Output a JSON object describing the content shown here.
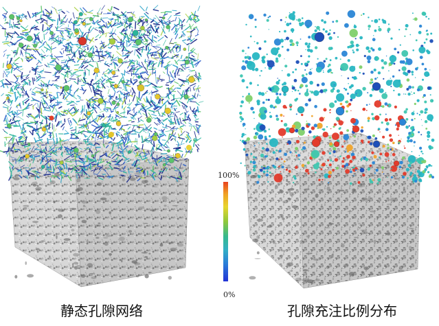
{
  "captions": {
    "left": "静态孔隙网络",
    "right": "孔隙充注比例分布"
  },
  "colorbar": {
    "max_label": "100%",
    "min_label": "0%",
    "colors": [
      "#e9421f",
      "#f0a024",
      "#e7d52d",
      "#8ec83b",
      "#35b98e",
      "#33b0c4",
      "#2a7fd8",
      "#2233d6"
    ]
  },
  "palette": {
    "rock_base": "#d8d8d8",
    "rock_dark": "#6e6e6e",
    "network_colors": [
      "#1b2a8a",
      "#2a5cc8",
      "#2aa3c8",
      "#2bb59b",
      "#5bc46a",
      "#a8cf3f",
      "#e6c62c",
      "#e05a2a"
    ],
    "bubble_colors": [
      "#27b6c2",
      "#3fc6b0",
      "#2a86d6",
      "#1d4fb8",
      "#e33b2b",
      "#f0a42b",
      "#7fd06a"
    ]
  }
}
